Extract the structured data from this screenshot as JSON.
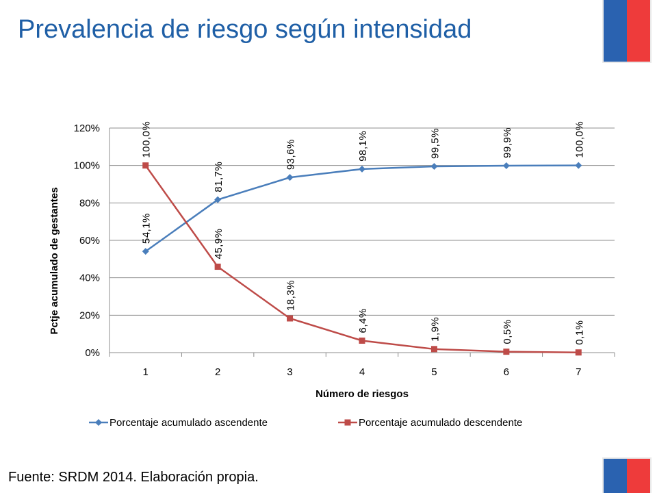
{
  "slide": {
    "title": "Prevalencia de riesgo según intensidad",
    "source": "Fuente: SRDM 2014. Elaboración propia.",
    "flag_colors": {
      "blue": "#2a62b0",
      "red": "#ee3b3b"
    }
  },
  "chart_data": {
    "type": "line",
    "title": "",
    "xlabel": "Número de riesgos",
    "ylabel": "Pctje acumulado de gestantes",
    "x": [
      1,
      2,
      3,
      4,
      5,
      6,
      7
    ],
    "ylim": [
      0,
      120
    ],
    "yticks": [
      "0%",
      "20%",
      "40%",
      "60%",
      "80%",
      "100%",
      "120%"
    ],
    "ytick_values": [
      0,
      20,
      40,
      60,
      80,
      100,
      120
    ],
    "grid": true,
    "legend_position": "bottom",
    "series": [
      {
        "name": "Porcentaje acumulado ascendente",
        "color": "#4a7ebb",
        "marker": "diamond",
        "values": [
          54.1,
          81.7,
          93.6,
          98.1,
          99.5,
          99.9,
          100.0
        ],
        "labels": [
          "54,1%",
          "81,7%",
          "93,6%",
          "98,1%",
          "99,5%",
          "99,9%",
          "100,0%"
        ]
      },
      {
        "name": "Porcentaje acumulado descendente",
        "color": "#be4b48",
        "marker": "square",
        "values": [
          100.0,
          45.9,
          18.3,
          6.4,
          1.9,
          0.5,
          0.1
        ],
        "labels": [
          "100,0%",
          "45,9%",
          "18,3%",
          "6,4%",
          "1,9%",
          "0,5%",
          "0,1%"
        ]
      }
    ]
  }
}
